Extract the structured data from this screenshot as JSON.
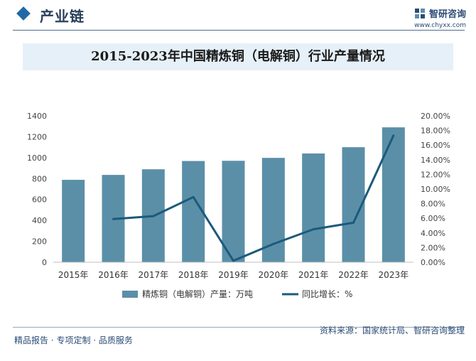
{
  "header": {
    "section_title": "产业链",
    "brand_name": "智研咨询",
    "brand_url": "www.chyxx.com"
  },
  "chart_data": {
    "type": "bar",
    "title": "2015-2023年中国精炼铜（电解铜）行业产量情况",
    "categories": [
      "2015年",
      "2016年",
      "2017年",
      "2018年",
      "2019年",
      "2020年",
      "2021年",
      "2022年",
      "2023年"
    ],
    "series": [
      {
        "name": "精炼铜（电解铜）产量：万吨",
        "type": "bar",
        "axis": "left",
        "color": "#5b8fa8",
        "values": [
          788,
          835,
          889,
          968,
          970,
          998,
          1040,
          1100,
          1290
        ]
      },
      {
        "name": "同比增长：%",
        "type": "line",
        "axis": "right",
        "color": "#1c5a7c",
        "values": [
          null,
          5.9,
          6.3,
          8.9,
          0.2,
          2.5,
          4.5,
          5.4,
          17.3
        ]
      }
    ],
    "y_left": {
      "min": 0,
      "max": 1400,
      "ticks": [
        "0",
        "200",
        "400",
        "600",
        "800",
        "1000",
        "1200",
        "1400"
      ]
    },
    "y_right": {
      "min": 0,
      "max": 20,
      "ticks": [
        "0.00%",
        "2.00%",
        "4.00%",
        "6.00%",
        "8.00%",
        "10.00%",
        "12.00%",
        "14.00%",
        "16.00%",
        "18.00%",
        "20.00%"
      ]
    },
    "grid": false,
    "legend_position": "bottom"
  },
  "footer": {
    "left_text": "精品报告 · 专项定制 · 品质服务",
    "source_text": "资料来源：国家统计局、智研咨询整理"
  }
}
